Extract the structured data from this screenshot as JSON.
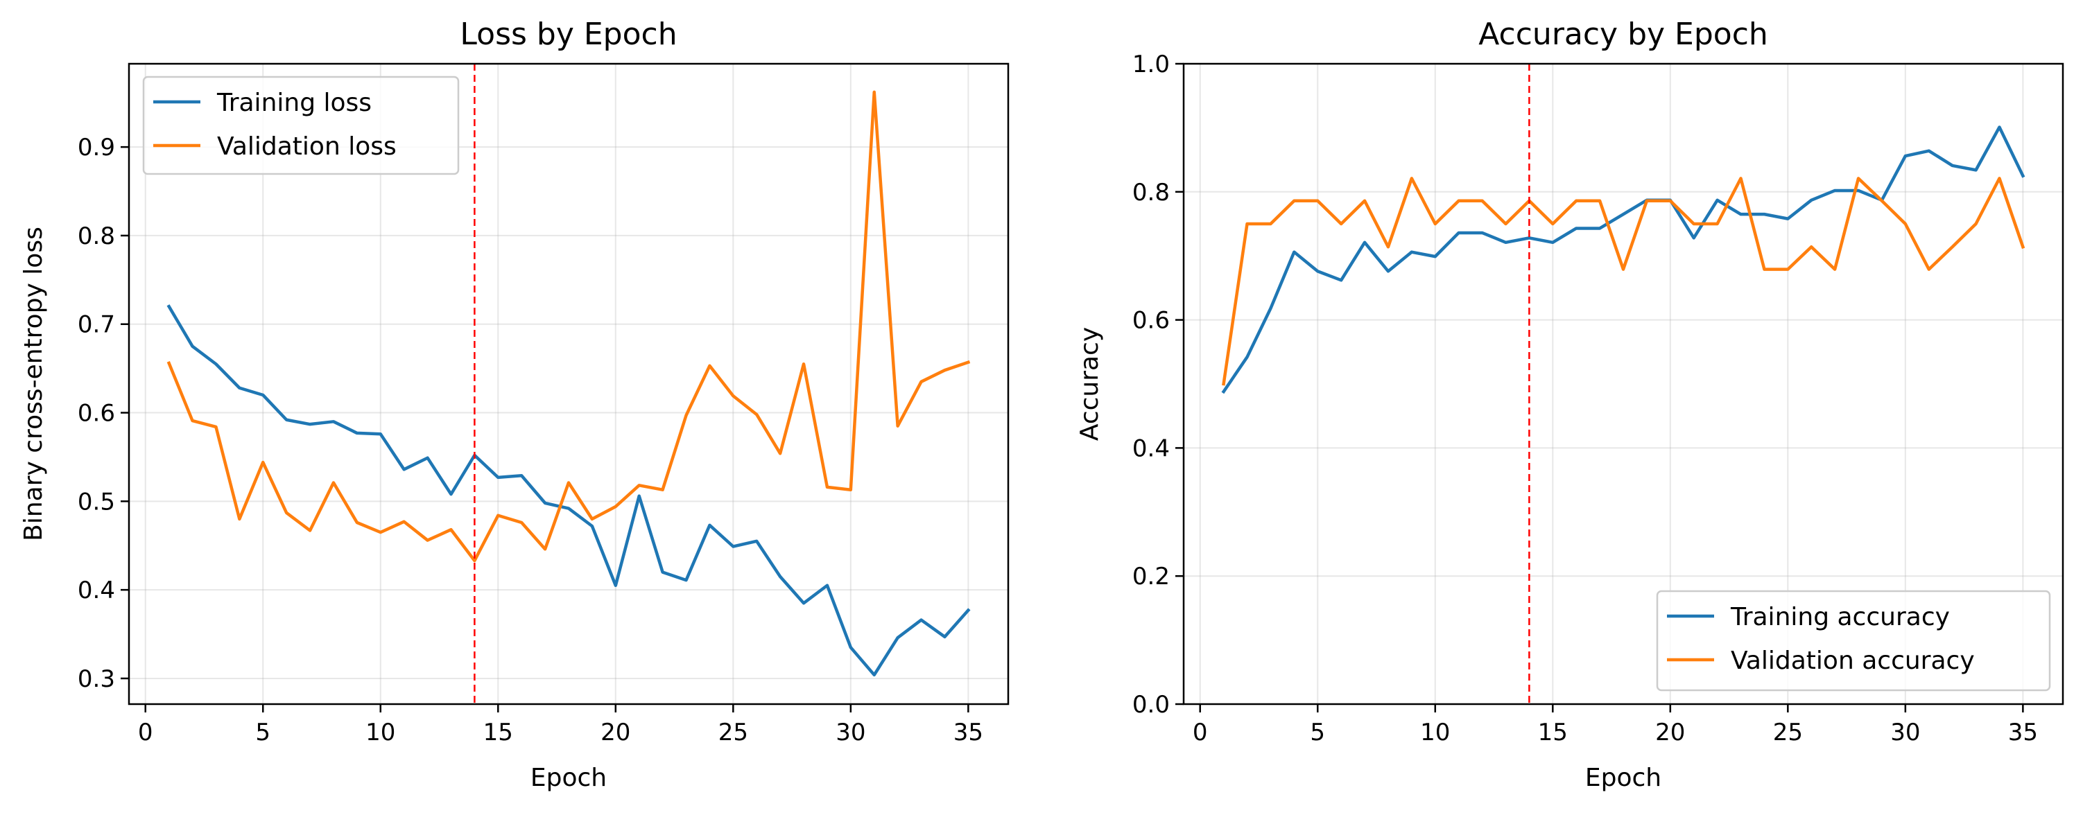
{
  "chart_data": [
    {
      "type": "line",
      "title": "Loss by Epoch",
      "xlabel": "Epoch",
      "ylabel": "Binary cross-entropy loss",
      "xlim": [
        -0.7,
        36.7
      ],
      "ylim": [
        0.271,
        0.994
      ],
      "xticks": [
        0,
        5,
        10,
        15,
        20,
        25,
        30,
        35
      ],
      "yticks": [
        0.3,
        0.4,
        0.5,
        0.6,
        0.7,
        0.8,
        0.9
      ],
      "ytick_labels": [
        "0.3",
        "0.4",
        "0.5",
        "0.6",
        "0.7",
        "0.8",
        "0.9"
      ],
      "grid": true,
      "legend": "upper left",
      "vline": {
        "x": 14,
        "color": "#ff0000",
        "style": "dashed"
      },
      "x": [
        1,
        2,
        3,
        4,
        5,
        6,
        7,
        8,
        9,
        10,
        11,
        12,
        13,
        14,
        15,
        16,
        17,
        18,
        19,
        20,
        21,
        22,
        23,
        24,
        25,
        26,
        27,
        28,
        29,
        30,
        31,
        32,
        33,
        34,
        35
      ],
      "series": [
        {
          "name": "Training loss",
          "color": "#1f77b4",
          "values": [
            0.72,
            0.675,
            0.655,
            0.628,
            0.62,
            0.592,
            0.587,
            0.59,
            0.577,
            0.576,
            0.536,
            0.549,
            0.508,
            0.552,
            0.527,
            0.529,
            0.498,
            0.492,
            0.472,
            0.405,
            0.506,
            0.42,
            0.411,
            0.473,
            0.449,
            0.455,
            0.415,
            0.385,
            0.405,
            0.335,
            0.304,
            0.346,
            0.366,
            0.347,
            0.377
          ]
        },
        {
          "name": "Validation loss",
          "color": "#ff7f0e",
          "values": [
            0.656,
            0.591,
            0.584,
            0.48,
            0.544,
            0.487,
            0.467,
            0.521,
            0.476,
            0.465,
            0.477,
            0.456,
            0.468,
            0.433,
            0.484,
            0.476,
            0.446,
            0.521,
            0.48,
            0.494,
            0.518,
            0.513,
            0.597,
            0.653,
            0.619,
            0.598,
            0.554,
            0.655,
            0.516,
            0.513,
            0.962,
            0.585,
            0.635,
            0.648,
            0.657
          ]
        }
      ]
    },
    {
      "type": "line",
      "title": "Accuracy by Epoch",
      "xlabel": "Epoch",
      "ylabel": "Accuracy",
      "xlim": [
        -0.7,
        36.7
      ],
      "ylim": [
        0.0,
        1.0
      ],
      "xticks": [
        0,
        5,
        10,
        15,
        20,
        25,
        30,
        35
      ],
      "yticks": [
        0.0,
        0.2,
        0.4,
        0.6,
        0.8,
        1.0
      ],
      "ytick_labels": [
        "0.0",
        "0.2",
        "0.4",
        "0.6",
        "0.8",
        "1.0"
      ],
      "grid": true,
      "legend": "lower right",
      "vline": {
        "x": 14,
        "color": "#ff0000",
        "style": "dashed"
      },
      "x": [
        1,
        2,
        3,
        4,
        5,
        6,
        7,
        8,
        9,
        10,
        11,
        12,
        13,
        14,
        15,
        16,
        17,
        18,
        19,
        20,
        21,
        22,
        23,
        24,
        25,
        26,
        27,
        28,
        29,
        30,
        31,
        32,
        33,
        34,
        35
      ],
      "series": [
        {
          "name": "Training accuracy",
          "color": "#1f77b4",
          "values": [
            0.488,
            0.542,
            0.618,
            0.706,
            0.676,
            0.662,
            0.721,
            0.676,
            0.706,
            0.699,
            0.736,
            0.736,
            0.721,
            0.728,
            0.721,
            0.743,
            0.743,
            0.765,
            0.787,
            0.787,
            0.728,
            0.787,
            0.765,
            0.765,
            0.758,
            0.787,
            0.802,
            0.802,
            0.787,
            0.856,
            0.864,
            0.841,
            0.834,
            0.901,
            0.825
          ]
        },
        {
          "name": "Validation accuracy",
          "color": "#ff7f0e",
          "values": [
            0.5,
            0.75,
            0.75,
            0.786,
            0.786,
            0.75,
            0.786,
            0.714,
            0.821,
            0.75,
            0.786,
            0.786,
            0.75,
            0.786,
            0.75,
            0.786,
            0.786,
            0.679,
            0.786,
            0.786,
            0.75,
            0.75,
            0.821,
            0.679,
            0.679,
            0.714,
            0.679,
            0.821,
            0.786,
            0.75,
            0.679,
            0.714,
            0.75,
            0.821,
            0.714
          ]
        }
      ]
    }
  ]
}
